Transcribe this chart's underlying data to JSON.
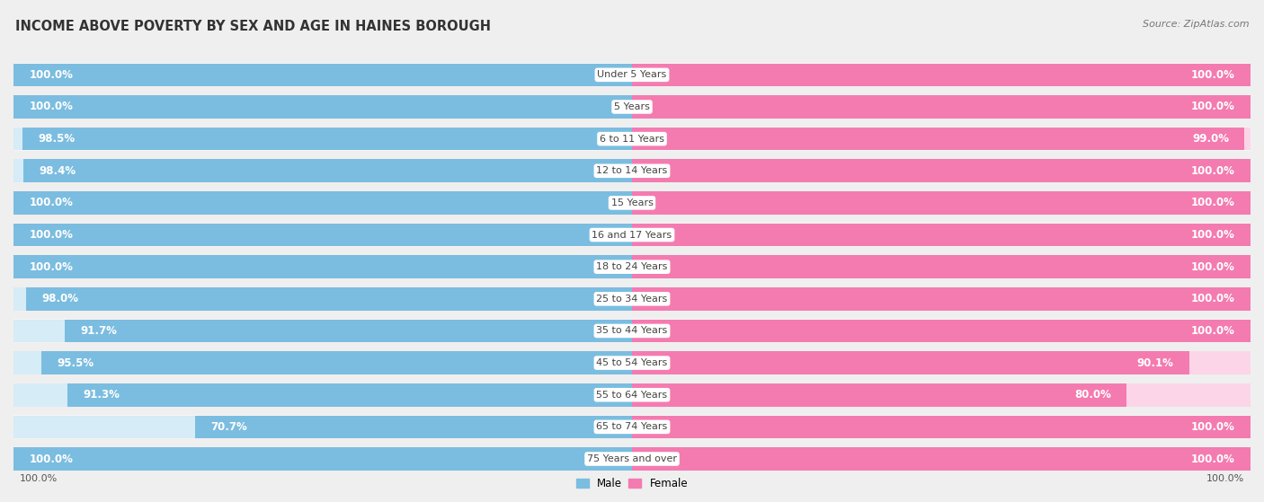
{
  "title": "INCOME ABOVE POVERTY BY SEX AND AGE IN HAINES BOROUGH",
  "source": "Source: ZipAtlas.com",
  "categories": [
    "Under 5 Years",
    "5 Years",
    "6 to 11 Years",
    "12 to 14 Years",
    "15 Years",
    "16 and 17 Years",
    "18 to 24 Years",
    "25 to 34 Years",
    "35 to 44 Years",
    "45 to 54 Years",
    "55 to 64 Years",
    "65 to 74 Years",
    "75 Years and over"
  ],
  "male_values": [
    100.0,
    100.0,
    98.5,
    98.4,
    100.0,
    100.0,
    100.0,
    98.0,
    91.7,
    95.5,
    91.3,
    70.7,
    100.0
  ],
  "female_values": [
    100.0,
    100.0,
    99.0,
    100.0,
    100.0,
    100.0,
    100.0,
    100.0,
    100.0,
    90.1,
    80.0,
    100.0,
    100.0
  ],
  "male_color": "#7bbde0",
  "male_bg_color": "#d6ecf7",
  "female_color": "#f47bb0",
  "female_bg_color": "#fcd5e8",
  "background_color": "#efefef",
  "row_bg_color": "#e8e8e8",
  "title_fontsize": 10.5,
  "label_fontsize": 8.0,
  "value_fontsize": 8.5,
  "source_fontsize": 8.0,
  "bottom_label": "100.0%"
}
